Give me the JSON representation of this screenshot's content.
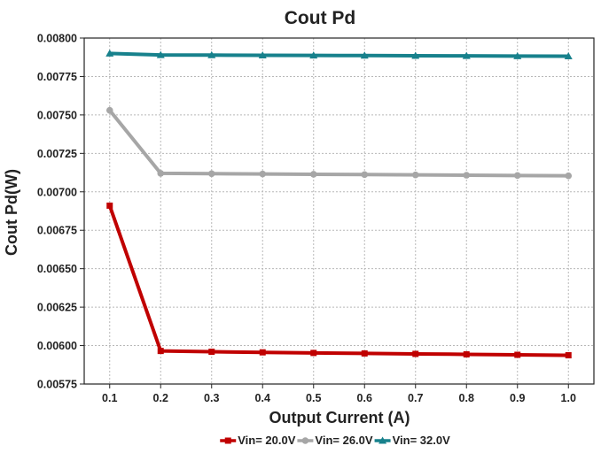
{
  "chart_data": {
    "type": "line",
    "title": "Cout Pd",
    "xlabel": "Output Current (A)",
    "ylabel": "Cout Pd(W)",
    "x": [
      0.1,
      0.2,
      0.3,
      0.4,
      0.5,
      0.6,
      0.7,
      0.8,
      0.9,
      1.0
    ],
    "x_tick_labels": [
      "0.1",
      "0.2",
      "0.3",
      "0.4",
      "0.5",
      "0.6",
      "0.7",
      "0.8",
      "0.9",
      "1.0"
    ],
    "xlim": [
      0.05,
      1.05
    ],
    "ylim": [
      0.00575,
      0.008
    ],
    "y_ticks": [
      0.00575,
      0.006,
      0.00625,
      0.0065,
      0.00675,
      0.007,
      0.00725,
      0.0075,
      0.00775,
      0.008
    ],
    "y_tick_labels": [
      "0.00575",
      "0.00600",
      "0.00625",
      "0.00650",
      "0.00675",
      "0.00700",
      "0.00725",
      "0.00750",
      "0.00775",
      "0.00800"
    ],
    "grid": true,
    "legend_position": "bottom",
    "series": [
      {
        "name": "Vin= 20.0V",
        "color": "#c00000",
        "marker": "square",
        "values": [
          0.00691,
          0.005965,
          0.00596,
          0.005956,
          0.005952,
          0.005949,
          0.005946,
          0.005943,
          0.00594,
          0.005937
        ]
      },
      {
        "name": "Vin= 26.0V",
        "color": "#a6a6a6",
        "marker": "circle",
        "values": [
          0.00753,
          0.00712,
          0.007118,
          0.007116,
          0.007114,
          0.007112,
          0.00711,
          0.007108,
          0.007106,
          0.007104
        ]
      },
      {
        "name": "Vin= 32.0V",
        "color": "#17818c",
        "marker": "triangle",
        "values": [
          0.0079,
          0.00789,
          0.007889,
          0.007888,
          0.007887,
          0.007886,
          0.007885,
          0.007884,
          0.007883,
          0.007882
        ]
      }
    ]
  }
}
